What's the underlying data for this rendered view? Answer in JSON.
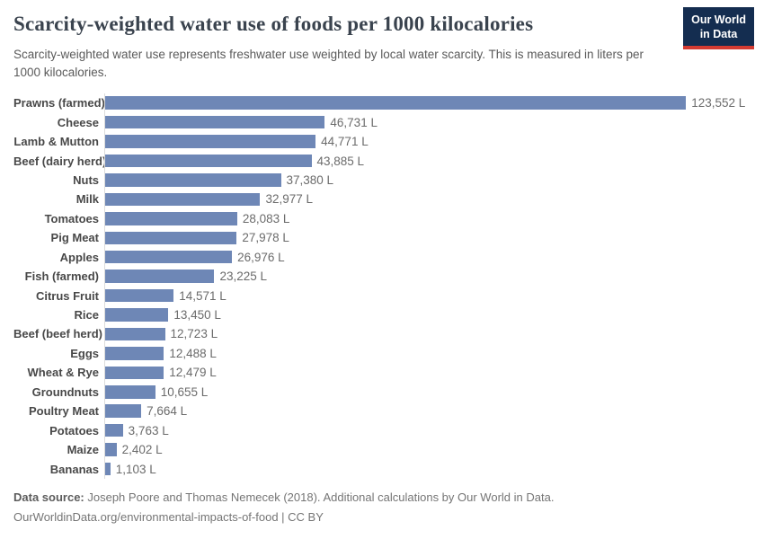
{
  "header": {
    "title": "Scarcity-weighted water use of foods per 1000 kilocalories",
    "subtitle": "Scarcity-weighted water use represents freshwater use weighted by local water scarcity. This is measured in liters per 1000 kilocalories.",
    "logo": {
      "line1": "Our World",
      "line2": "in Data"
    }
  },
  "chart_data": {
    "type": "bar",
    "orientation": "horizontal",
    "title": "Scarcity-weighted water use of foods per 1000 kilocalories",
    "xlabel": "Liters per 1000 kilocalories",
    "ylabel": "",
    "xlim": [
      0,
      123552
    ],
    "grid": false,
    "legend": false,
    "bar_color": "#6e87b6",
    "categories": [
      "Prawns (farmed)",
      "Cheese",
      "Lamb & Mutton",
      "Beef (dairy herd)",
      "Nuts",
      "Milk",
      "Tomatoes",
      "Pig Meat",
      "Apples",
      "Fish (farmed)",
      "Citrus Fruit",
      "Rice",
      "Beef (beef herd)",
      "Eggs",
      "Wheat & Rye",
      "Groundnuts",
      "Poultry Meat",
      "Potatoes",
      "Maize",
      "Bananas"
    ],
    "values": [
      123552,
      46731,
      44771,
      43885,
      37380,
      32977,
      28083,
      27978,
      26976,
      23225,
      14571,
      13450,
      12723,
      12488,
      12479,
      10655,
      7664,
      3763,
      2402,
      1103
    ],
    "value_labels": [
      "123,552 L",
      "46,731 L",
      "44,771 L",
      "43,885 L",
      "37,380 L",
      "32,977 L",
      "28,083 L",
      "27,978 L",
      "26,976 L",
      "23,225 L",
      "14,571 L",
      "13,450 L",
      "12,723 L",
      "12,488 L",
      "12,479 L",
      "10,655 L",
      "7,664 L",
      "3,763 L",
      "2,402 L",
      "1,103 L"
    ]
  },
  "footer": {
    "source_label": "Data source:",
    "source_text": " Joseph Poore and Thomas Nemecek (2018). Additional calculations by Our World in Data.",
    "link_line": "OurWorldinData.org/environmental-impacts-of-food | CC BY"
  },
  "colors": {
    "bar": "#6e87b6",
    "logo_navy": "#142d50",
    "logo_red": "#d43b32",
    "title": "#3a434e",
    "axis_line": "#dcdcdc"
  }
}
